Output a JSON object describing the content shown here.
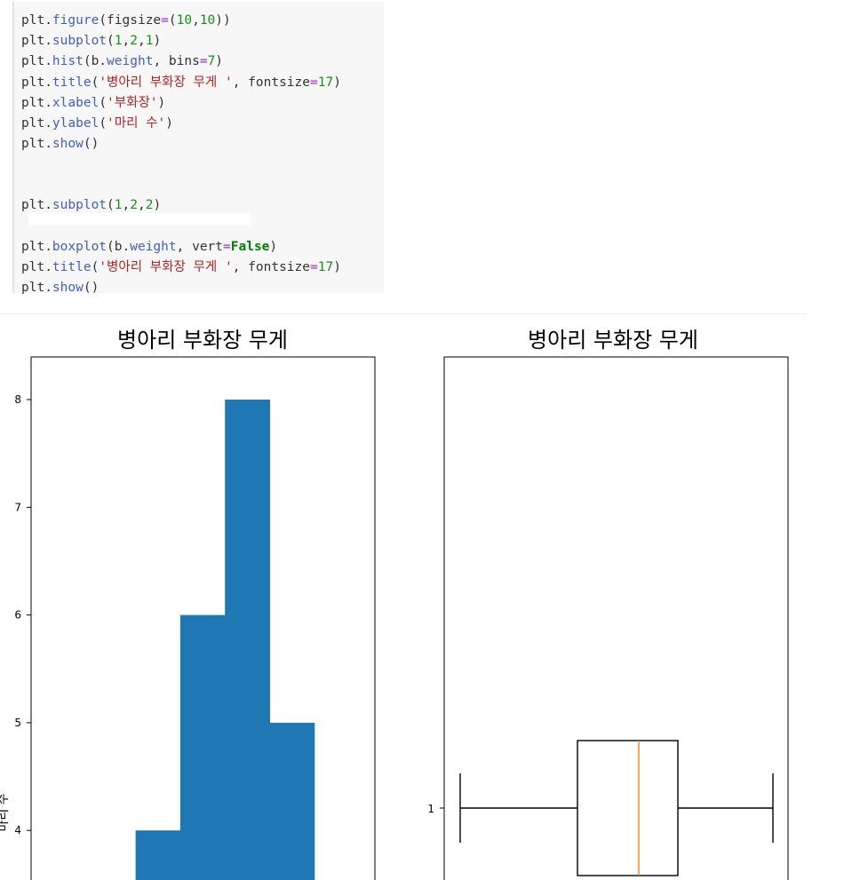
{
  "code_cell": {
    "lines": [
      {
        "y": 0,
        "tokens": [
          [
            "plt.",
            ""
          ],
          [
            "figure",
            "fn"
          ],
          [
            "(figsize",
            ""
          ],
          [
            "=",
            "op"
          ],
          [
            "(",
            ""
          ],
          [
            "10",
            "num"
          ],
          [
            ",",
            ""
          ],
          [
            "10",
            "num"
          ],
          [
            "))",
            ""
          ]
        ]
      },
      {
        "y": 1,
        "tokens": [
          [
            "plt.",
            ""
          ],
          [
            "subplot",
            "fn"
          ],
          [
            "(",
            ""
          ],
          [
            "1",
            "num"
          ],
          [
            ",",
            ""
          ],
          [
            "2",
            "num"
          ],
          [
            ",",
            ""
          ],
          [
            "1",
            "num"
          ],
          [
            ")",
            ""
          ]
        ]
      },
      {
        "y": 2,
        "tokens": [
          [
            "plt.",
            ""
          ],
          [
            "hist",
            "fn"
          ],
          [
            "(b.",
            ""
          ],
          [
            "weight",
            "fn"
          ],
          [
            ", bins",
            ""
          ],
          [
            "=",
            "op"
          ],
          [
            "7",
            "num"
          ],
          [
            ")",
            ""
          ]
        ]
      },
      {
        "y": 3,
        "tokens": [
          [
            "plt.",
            ""
          ],
          [
            "title",
            "fn"
          ],
          [
            "(",
            ""
          ],
          [
            "'병아리 부화장 무게 '",
            "str"
          ],
          [
            ", fontsize",
            ""
          ],
          [
            "=",
            "op"
          ],
          [
            "17",
            "num"
          ],
          [
            ")",
            ""
          ]
        ]
      },
      {
        "y": 4,
        "tokens": [
          [
            "plt.",
            ""
          ],
          [
            "xlabel",
            "fn"
          ],
          [
            "(",
            ""
          ],
          [
            "'부화장'",
            "str"
          ],
          [
            ")",
            ""
          ]
        ]
      },
      {
        "y": 5,
        "tokens": [
          [
            "plt.",
            ""
          ],
          [
            "ylabel",
            "fn"
          ],
          [
            "(",
            ""
          ],
          [
            "'마리 수'",
            "str"
          ],
          [
            ")",
            ""
          ]
        ]
      },
      {
        "y": 6,
        "tokens": [
          [
            "plt.",
            ""
          ],
          [
            "show",
            "fn"
          ],
          [
            "()",
            ""
          ]
        ]
      },
      {
        "y": 9,
        "tokens": [
          [
            "plt.",
            ""
          ],
          [
            "subplot",
            "fn"
          ],
          [
            "(",
            ""
          ],
          [
            "1",
            "num"
          ],
          [
            ",",
            ""
          ],
          [
            "2",
            "num"
          ],
          [
            ",",
            ""
          ],
          [
            "2",
            "num"
          ],
          [
            ")",
            ""
          ]
        ]
      },
      {
        "y": 11,
        "tokens": [
          [
            "plt.",
            ""
          ],
          [
            "boxplot",
            "fn"
          ],
          [
            "(b.",
            ""
          ],
          [
            "weight",
            "fn"
          ],
          [
            ", vert",
            ""
          ],
          [
            "=",
            "op"
          ],
          [
            "False",
            "kw"
          ],
          [
            ")",
            ""
          ]
        ]
      },
      {
        "y": 12,
        "tokens": [
          [
            "plt.",
            ""
          ],
          [
            "title",
            "fn"
          ],
          [
            "(",
            ""
          ],
          [
            "'병아리 부화장 무게 '",
            "str"
          ],
          [
            ", fontsize",
            ""
          ],
          [
            "=",
            "op"
          ],
          [
            "17",
            "num"
          ],
          [
            ")",
            ""
          ]
        ]
      },
      {
        "y": 13,
        "tokens": [
          [
            "plt.",
            ""
          ],
          [
            "show",
            "fn"
          ],
          [
            "()",
            ""
          ]
        ]
      }
    ]
  },
  "chart_data": [
    {
      "type": "bar",
      "title": "병아리 부화장 무게",
      "ylabel": "마리 수",
      "yticks": [
        "4",
        "5",
        "6",
        "7",
        "8"
      ],
      "bins": [
        {
          "index": 2,
          "value": 4
        },
        {
          "index": 3,
          "value": 6
        },
        {
          "index": 4,
          "value": 8
        },
        {
          "index": 5,
          "value": 5
        }
      ],
      "bin_count": 7,
      "color": "#1f77b4"
    },
    {
      "type": "boxplot",
      "title": "병아리 부화장 무게",
      "orientation": "horizontal",
      "yticks": [
        "1"
      ],
      "median_color": "#ff7f0e"
    }
  ]
}
